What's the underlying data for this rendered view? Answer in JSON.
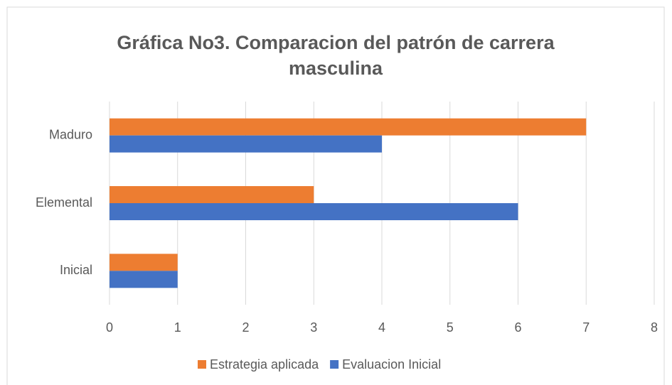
{
  "chart_data": {
    "type": "hbar",
    "title": "Gráfica No3. Comparacion del  patrón de carrera masculina",
    "categories": [
      "Inicial",
      "Elemental",
      "Maduro"
    ],
    "series": [
      {
        "name": "Estrategia aplicada",
        "color": "#ed7d31",
        "values": [
          1,
          3,
          7
        ]
      },
      {
        "name": "Evaluacion Inicial",
        "color": "#4472c4",
        "values": [
          1,
          6,
          4
        ]
      }
    ],
    "xlim": [
      0,
      8
    ],
    "xticks": [
      0,
      1,
      2,
      3,
      4,
      5,
      6,
      7,
      8
    ],
    "grid": true,
    "legend": "bottom"
  }
}
